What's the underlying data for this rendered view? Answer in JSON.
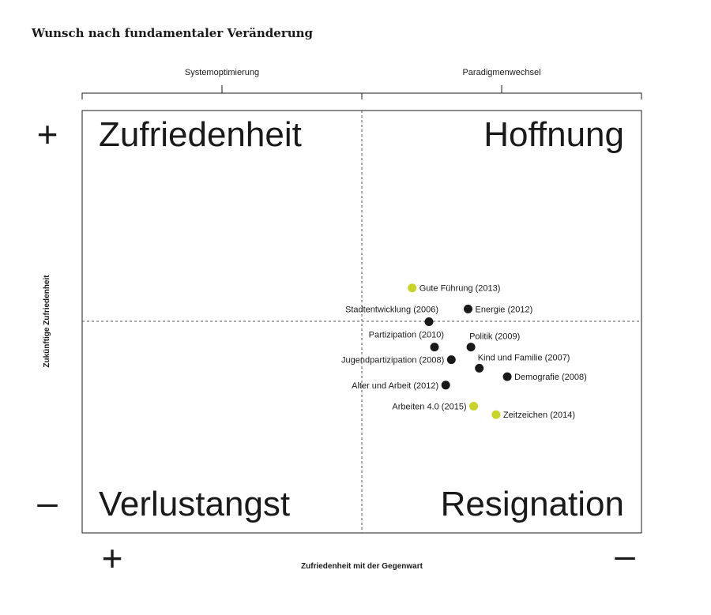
{
  "chart_data": {
    "type": "scatter",
    "title": "Wunsch nach fundamentaler Veränderung",
    "xlabel": "Zufriedenheit mit der Gegenwart",
    "ylabel": "Zukünftige Zufriedenheit",
    "xlim": [
      0,
      10
    ],
    "ylim": [
      0,
      10
    ],
    "grid": false,
    "top_scale": {
      "left": "Systemoptimierung",
      "right": "Paradigmenwechsel"
    },
    "quadrants": {
      "top_left": "Zufriedenheit",
      "top_right": "Hoffnung",
      "bottom_left": "Verlustangst",
      "bottom_right": "Resignation"
    },
    "signs": {
      "y_top": "+",
      "y_bottom": "–",
      "x_left": "+",
      "x_right": "–"
    },
    "series": [
      {
        "color": "#1a1a1a",
        "points": [
          {
            "label": "Energie (2012)",
            "x": 6.9,
            "y": 5.3,
            "label_side": "right"
          },
          {
            "label": "Stadtentwicklung (2006)",
            "x": 6.2,
            "y": 5.0,
            "label_side": "left-above"
          },
          {
            "label": "Partizipation (2010)",
            "x": 6.3,
            "y": 4.4,
            "label_side": "left-above"
          },
          {
            "label": "Politik (2009)",
            "x": 6.95,
            "y": 4.4,
            "label_side": "right-above"
          },
          {
            "label": "Jugendpartizipation (2008)",
            "x": 6.6,
            "y": 4.1,
            "label_side": "left"
          },
          {
            "label": "Kind und Familie (2007)",
            "x": 7.1,
            "y": 3.9,
            "label_side": "right-above"
          },
          {
            "label": "Demografie (2008)",
            "x": 7.6,
            "y": 3.7,
            "label_side": "right"
          },
          {
            "label": "Alter und Arbeit (2012)",
            "x": 6.5,
            "y": 3.5,
            "label_side": "left"
          }
        ]
      },
      {
        "color": "#c8d42b",
        "points": [
          {
            "label": "Gute Führung (2013)",
            "x": 5.9,
            "y": 5.8,
            "label_side": "right"
          },
          {
            "label": "Arbeiten 4.0 (2015)",
            "x": 7.0,
            "y": 3.0,
            "label_side": "left"
          },
          {
            "label": "Zeitzeichen (2014)",
            "x": 7.4,
            "y": 2.8,
            "label_side": "right"
          }
        ]
      }
    ]
  }
}
